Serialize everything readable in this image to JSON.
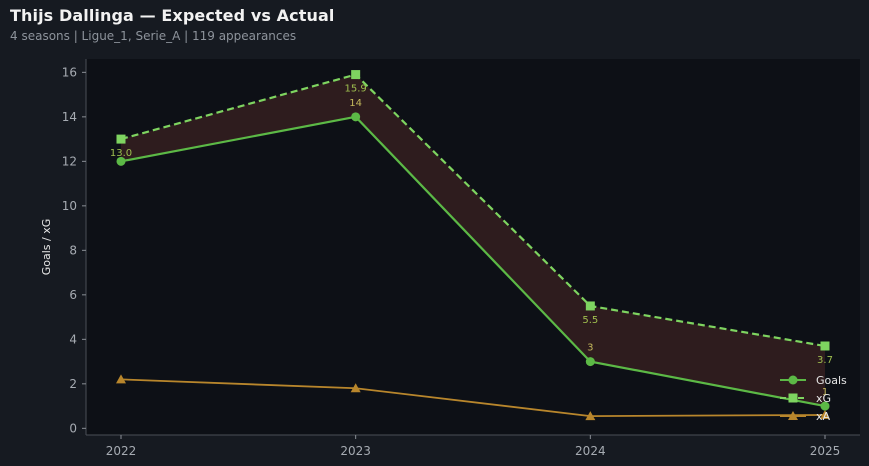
{
  "header": {
    "title": "Thijs Dallinga — Expected vs Actual",
    "subtitle": "4 seasons | Ligue_1, Serie_A | 119 appearances"
  },
  "chart_data": {
    "type": "line",
    "title": "Thijs Dallinga — Expected vs Actual",
    "xlabel": "",
    "ylabel": "Goals / xG",
    "x": [
      "2022",
      "2023",
      "2024",
      "2025"
    ],
    "ylim": [
      -0.3,
      16.6
    ],
    "yticks": [
      0,
      2,
      4,
      6,
      8,
      10,
      12,
      14,
      16
    ],
    "grid": false,
    "legend_position": "bottom-right",
    "series": [
      {
        "name": "Goals",
        "values": [
          12,
          14,
          3,
          1
        ],
        "labels": [
          "",
          "14",
          "3",
          "1"
        ],
        "color": "#5cb946",
        "style": "solid",
        "marker": "circle"
      },
      {
        "name": "xG",
        "values": [
          13.0,
          15.9,
          5.5,
          3.7
        ],
        "labels": [
          "13.0",
          "15.9",
          "5.5",
          "3.7"
        ],
        "color": "#7ed460",
        "style": "dashed",
        "marker": "square"
      },
      {
        "name": "xA",
        "values": [
          2.2,
          1.8,
          0.55,
          0.6
        ],
        "labels": [
          "",
          "",
          "",
          ""
        ],
        "color": "#b8862c",
        "style": "solid",
        "marker": "triangle"
      }
    ],
    "fill_between": {
      "series": [
        "Goals",
        "xG"
      ],
      "color": "#2e1c1e"
    },
    "colors": {
      "background": "#161a21",
      "plot_background": "#0d1016",
      "axis": "#4a4f57"
    }
  }
}
